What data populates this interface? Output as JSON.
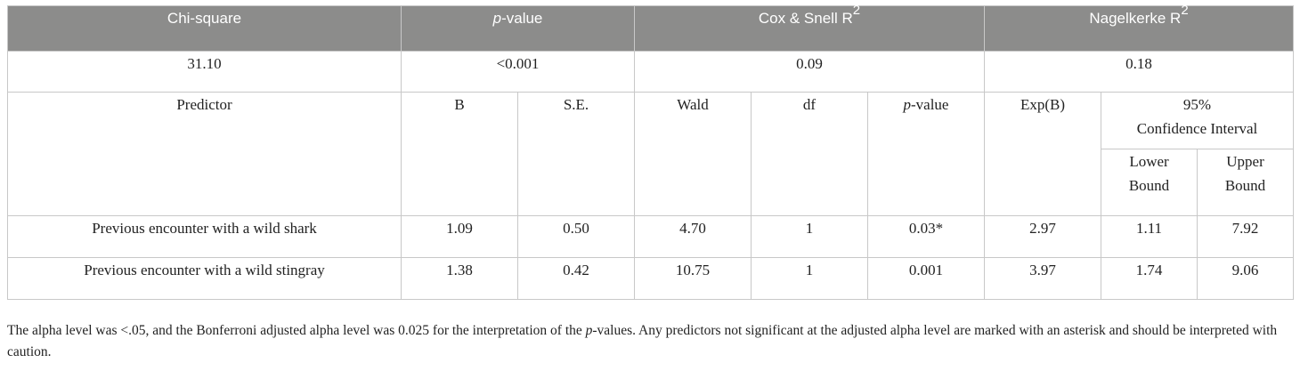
{
  "header": {
    "chi_square": "Chi-square",
    "p_value_prefix": "p",
    "p_value_suffix": "-value",
    "cox_snell": "Cox & Snell R",
    "nagelkerke": "Nagelkerke R",
    "superscript": "2"
  },
  "summary": {
    "chi_square": "31.10",
    "p_value": "<0.001",
    "cox_snell": "0.09",
    "nagelkerke": "0.18"
  },
  "columns": {
    "predictor": "Predictor",
    "b": "B",
    "se": "S.E.",
    "wald": "Wald",
    "df": "df",
    "p_prefix": "p",
    "p_suffix": "-value",
    "exp_b": "Exp(B)",
    "ci_line1": "95%",
    "ci_line2": "Confidence Interval",
    "lower_line1": "Lower",
    "lower_line2": "Bound",
    "upper_line1": "Upper",
    "upper_line2": "Bound"
  },
  "rows": [
    {
      "predictor": "Previous encounter with a wild shark",
      "b": "1.09",
      "se": "0.50",
      "wald": "4.70",
      "df": "1",
      "p": "0.03*",
      "exp_b": "2.97",
      "lower": "1.11",
      "upper": "7.92"
    },
    {
      "predictor": "Previous encounter with a wild stingray",
      "b": "1.38",
      "se": "0.42",
      "wald": "10.75",
      "df": "1",
      "p": "0.001",
      "exp_b": "3.97",
      "lower": "1.74",
      "upper": "9.06"
    }
  ],
  "note": {
    "part1": "The alpha level was <.05, and the Bonferroni adjusted alpha level was 0.025 for the interpretation of the ",
    "italic_p": "p",
    "part2": "-values. Any predictors not significant at the adjusted alpha level are marked with an asterisk and should be interpreted with caution."
  },
  "colors": {
    "header_bg": "#8c8c8b",
    "header_text": "#ffffff",
    "border": "#c8c8c8"
  }
}
